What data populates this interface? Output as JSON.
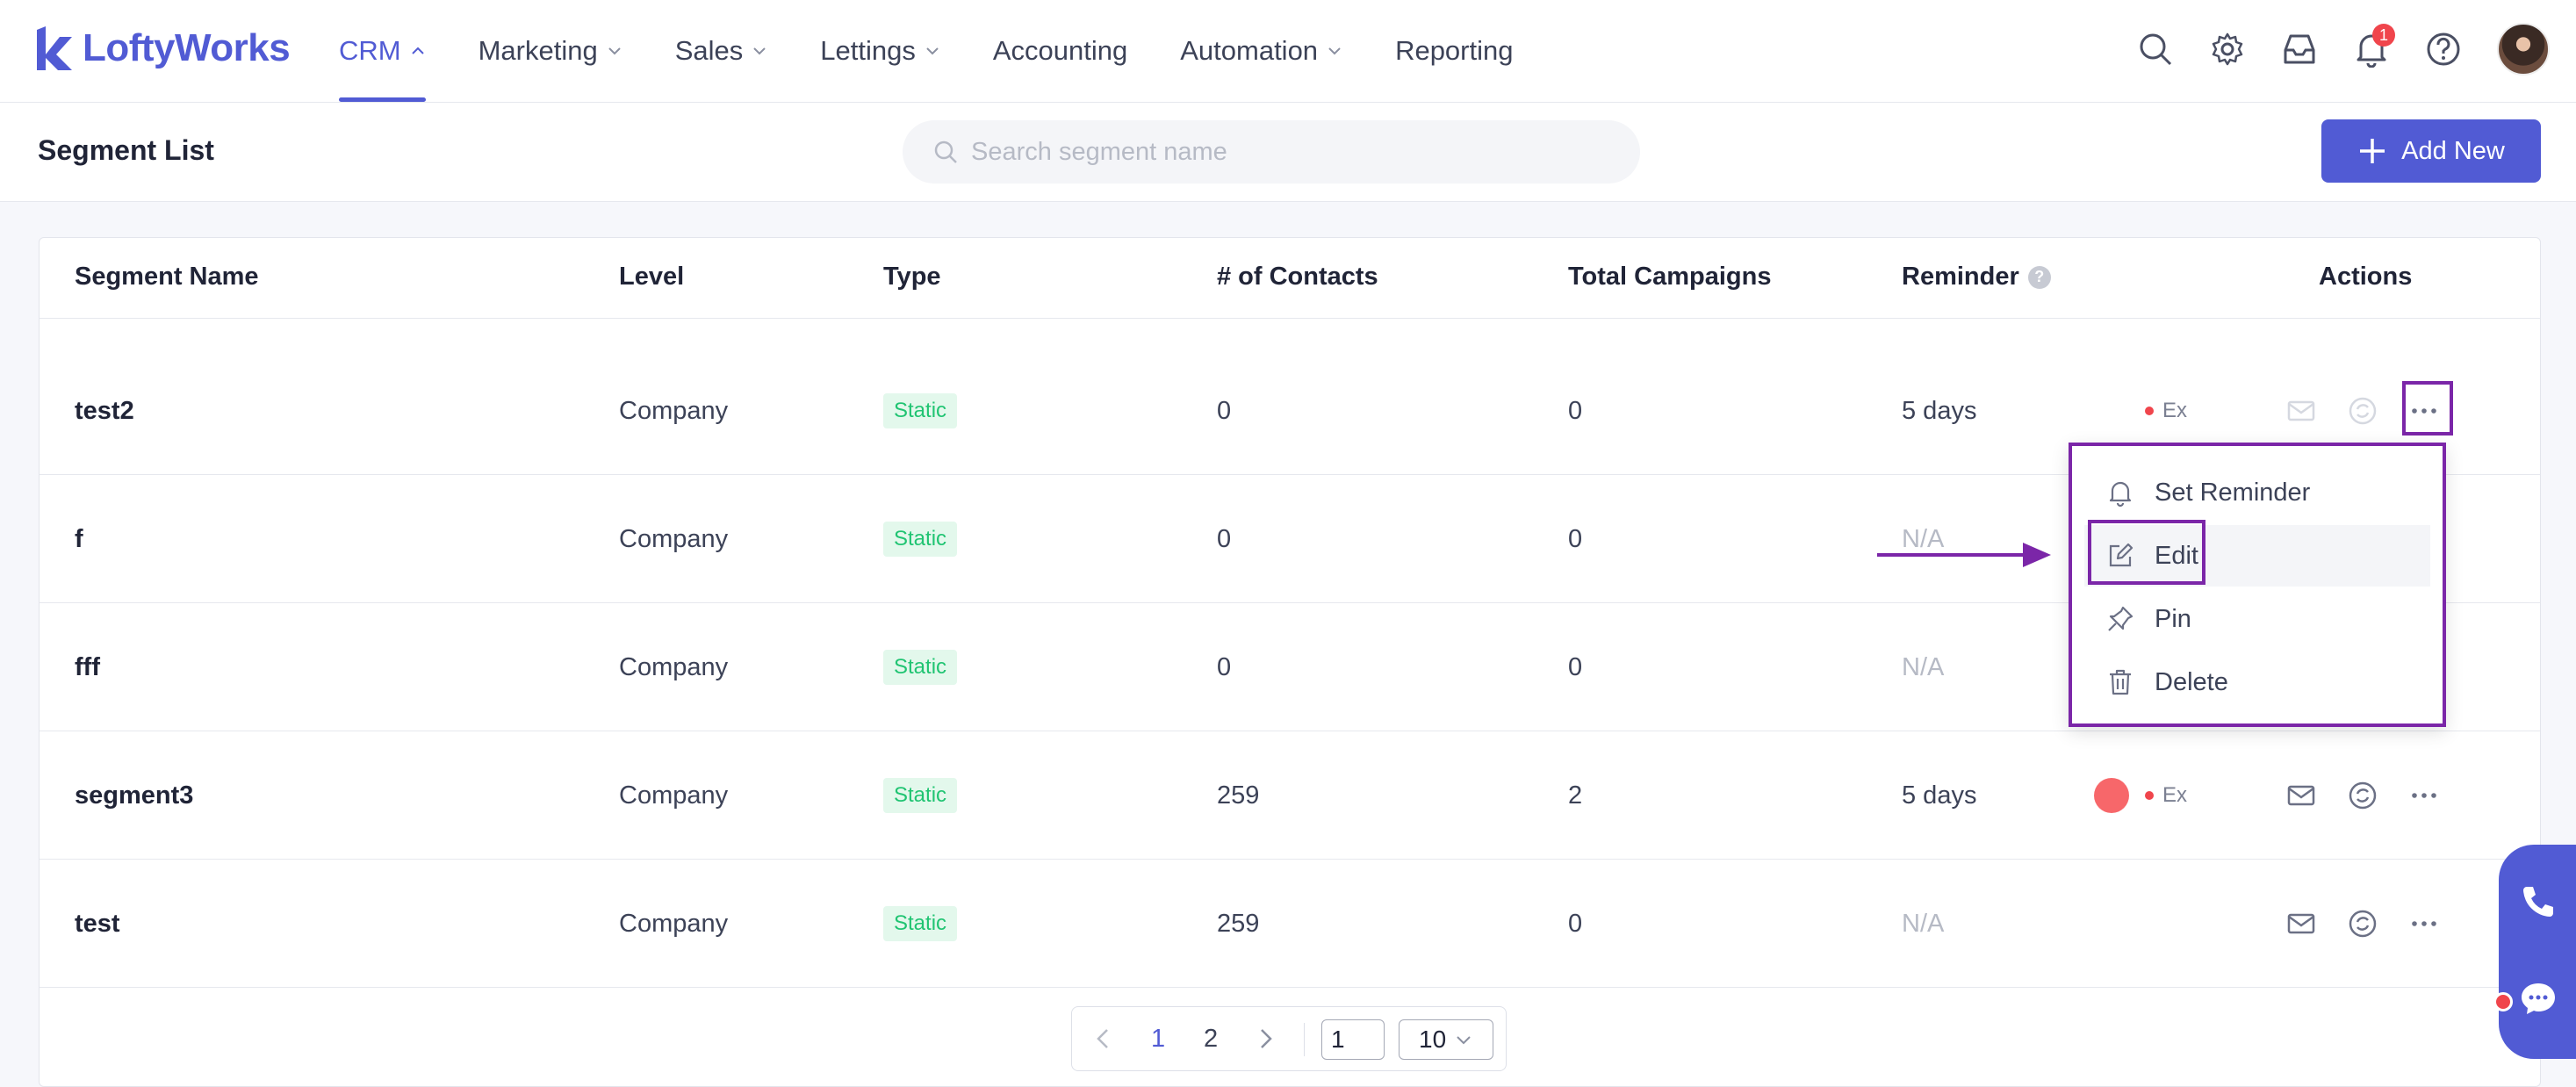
{
  "brand": {
    "name": "LoftyWorks",
    "color": "#515bd4"
  },
  "nav": {
    "items": [
      {
        "label": "CRM",
        "has_menu": true,
        "active": true
      },
      {
        "label": "Marketing",
        "has_menu": true
      },
      {
        "label": "Sales",
        "has_menu": true
      },
      {
        "label": "Lettings",
        "has_menu": true
      },
      {
        "label": "Accounting",
        "has_menu": false
      },
      {
        "label": "Automation",
        "has_menu": true
      },
      {
        "label": "Reporting",
        "has_menu": false
      }
    ],
    "icons": [
      "search-icon",
      "gear-icon",
      "inbox-icon",
      "bell-icon",
      "help-icon"
    ],
    "notification_count": "1"
  },
  "header": {
    "title": "Segment List",
    "search_placeholder": "Search segment name",
    "add_label": "Add New"
  },
  "table": {
    "columns": [
      "Segment Name",
      "Level",
      "Type",
      "# of Contacts",
      "Total Campaigns",
      "Reminder",
      "Actions"
    ],
    "rows": [
      {
        "name": "test2",
        "level": "Company",
        "type": "Static",
        "contacts": "0",
        "campaigns": "0",
        "reminder": "5 days",
        "ex": "Ex"
      },
      {
        "name": "f",
        "level": "Company",
        "type": "Static",
        "contacts": "0",
        "campaigns": "0",
        "reminder": "N/A",
        "ex": ""
      },
      {
        "name": "fff",
        "level": "Company",
        "type": "Static",
        "contacts": "0",
        "campaigns": "0",
        "reminder": "N/A",
        "ex": ""
      },
      {
        "name": "segment3",
        "level": "Company",
        "type": "Static",
        "contacts": "259",
        "campaigns": "2",
        "reminder": "5 days",
        "ex": "Ex"
      },
      {
        "name": "test",
        "level": "Company",
        "type": "Static",
        "contacts": "259",
        "campaigns": "0",
        "reminder": "N/A",
        "ex": ""
      }
    ]
  },
  "action_menu": {
    "items": [
      {
        "label": "Set Reminder",
        "icon": "bell-icon"
      },
      {
        "label": "Edit",
        "icon": "edit-icon"
      },
      {
        "label": "Pin",
        "icon": "pin-icon"
      },
      {
        "label": "Delete",
        "icon": "trash-icon"
      }
    ]
  },
  "pagination": {
    "pages": [
      "1",
      "2"
    ],
    "current": "1",
    "jump_value": "1",
    "page_size": "10"
  },
  "colors": {
    "accent": "#515bd4",
    "annotation": "#7b26a8",
    "tag_bg": "#e3f8ec",
    "tag_text": "#20c472",
    "alert": "#f0454c"
  }
}
